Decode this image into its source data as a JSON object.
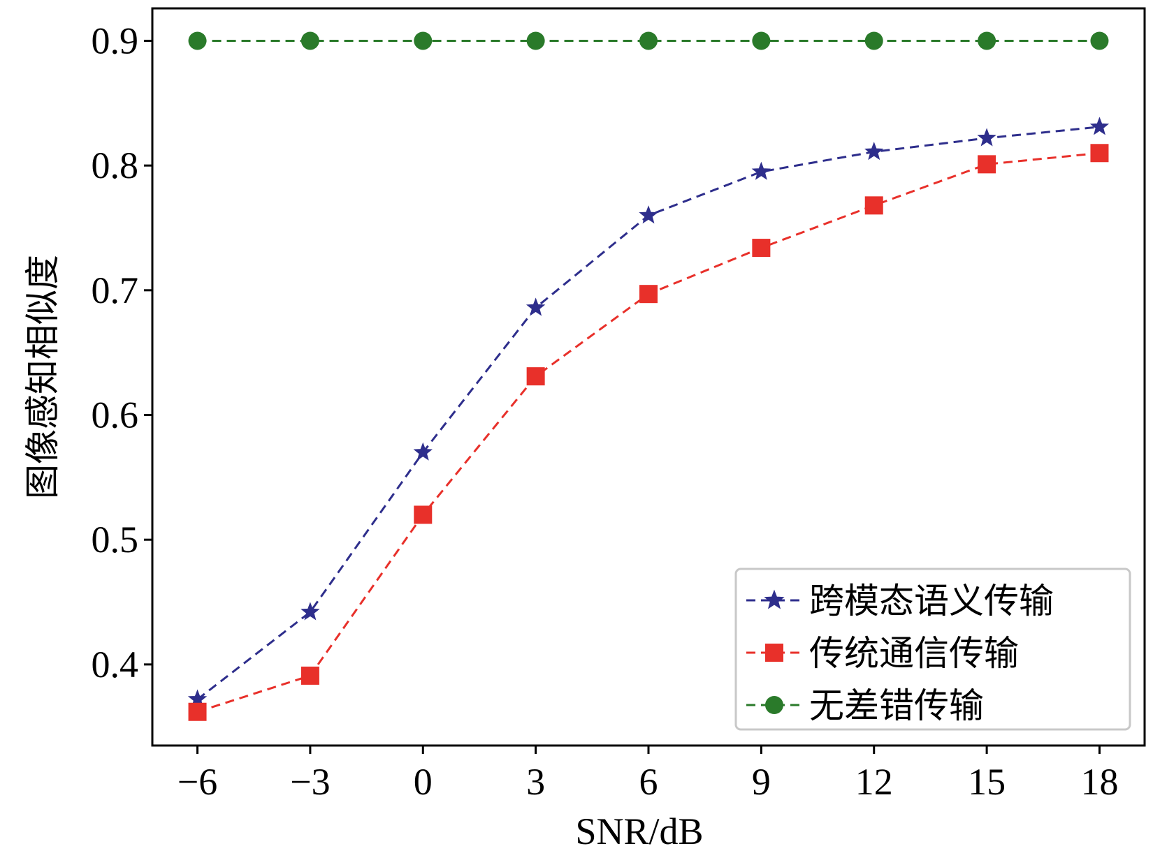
{
  "chart_data": {
    "type": "line",
    "title": "",
    "xlabel": "SNR/dB",
    "ylabel": "图像感知相似度",
    "x": [
      -6,
      -3,
      0,
      3,
      6,
      9,
      12,
      15,
      18
    ],
    "x_tick_labels": [
      "−6",
      "−3",
      "0",
      "3",
      "6",
      "9",
      "12",
      "15",
      "18"
    ],
    "y_ticks": [
      0.4,
      0.5,
      0.6,
      0.7,
      0.8,
      0.9
    ],
    "y_tick_labels": [
      "0.4",
      "0.5",
      "0.6",
      "0.7",
      "0.8",
      "0.9"
    ],
    "xlim": [
      -7.2,
      19.2
    ],
    "ylim": [
      0.335,
      0.926
    ],
    "grid": false,
    "legend_position": "bottom-right",
    "series": [
      {
        "name": "跨模态语义传输",
        "color": "#2e2e8c",
        "marker": "star",
        "line_style": "dashed",
        "values": [
          0.372,
          0.442,
          0.57,
          0.686,
          0.76,
          0.795,
          0.811,
          0.822,
          0.831
        ]
      },
      {
        "name": "传统通信传输",
        "color": "#e8302a",
        "marker": "square",
        "line_style": "dashed",
        "values": [
          0.362,
          0.391,
          0.52,
          0.631,
          0.697,
          0.734,
          0.768,
          0.801,
          0.81
        ]
      },
      {
        "name": "无差错传输",
        "color": "#2a7a2a",
        "marker": "circle",
        "line_style": "dashed",
        "values": [
          0.9,
          0.9,
          0.9,
          0.9,
          0.9,
          0.9,
          0.9,
          0.9,
          0.9
        ]
      }
    ]
  }
}
